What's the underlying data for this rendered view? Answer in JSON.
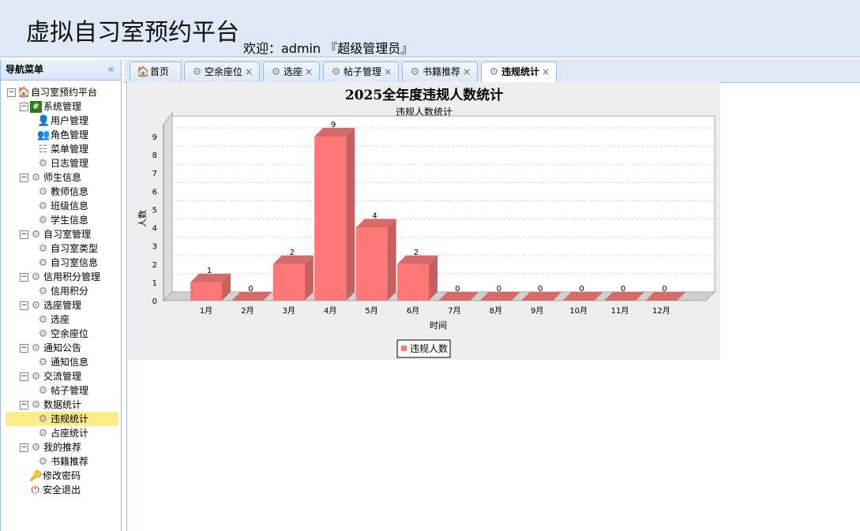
{
  "header": {
    "title": "虚拟自习室预约平台",
    "welcome": "欢迎：admin 『超级管理员』"
  },
  "sidebar": {
    "title": "导航菜单",
    "collapse_icon": "double-chevron-left-icon",
    "items": [
      {
        "label": "自习室预约平台",
        "level": 0,
        "icon": "home-icon",
        "expandable": true
      },
      {
        "label": "系统管理",
        "level": 1,
        "icon": "hash-icon",
        "expandable": true
      },
      {
        "label": "用户管理",
        "level": 2,
        "icon": "user-icon"
      },
      {
        "label": "角色管理",
        "level": 2,
        "icon": "users-icon"
      },
      {
        "label": "菜单管理",
        "level": 2,
        "icon": "menu-tree-icon"
      },
      {
        "label": "日志管理",
        "level": 2,
        "icon": "gear-icon"
      },
      {
        "label": "师生信息",
        "level": 1,
        "icon": "gear-icon",
        "expandable": true
      },
      {
        "label": "教师信息",
        "level": 2,
        "icon": "gear-icon"
      },
      {
        "label": "班级信息",
        "level": 2,
        "icon": "gear-icon"
      },
      {
        "label": "学生信息",
        "level": 2,
        "icon": "gear-icon"
      },
      {
        "label": "自习室管理",
        "level": 1,
        "icon": "gear-icon",
        "expandable": true
      },
      {
        "label": "自习室类型",
        "level": 2,
        "icon": "gear-icon"
      },
      {
        "label": "自习室信息",
        "level": 2,
        "icon": "gear-icon"
      },
      {
        "label": "信用积分管理",
        "level": 1,
        "icon": "gear-icon",
        "expandable": true
      },
      {
        "label": "信用积分",
        "level": 2,
        "icon": "gear-icon"
      },
      {
        "label": "选座管理",
        "level": 1,
        "icon": "gear-icon",
        "expandable": true
      },
      {
        "label": "选座",
        "level": 2,
        "icon": "gear-icon"
      },
      {
        "label": "空余座位",
        "level": 2,
        "icon": "gear-icon"
      },
      {
        "label": "通知公告",
        "level": 1,
        "icon": "gear-icon",
        "expandable": true
      },
      {
        "label": "通知信息",
        "level": 2,
        "icon": "gear-icon"
      },
      {
        "label": "交流管理",
        "level": 1,
        "icon": "gear-icon",
        "expandable": true
      },
      {
        "label": "帖子管理",
        "level": 2,
        "icon": "gear-icon"
      },
      {
        "label": "数据统计",
        "level": 1,
        "icon": "gear-icon",
        "expandable": true
      },
      {
        "label": "违规统计",
        "level": 2,
        "icon": "gear-icon",
        "selected": true
      },
      {
        "label": "占座统计",
        "level": 2,
        "icon": "gear-icon"
      },
      {
        "label": "我的推荐",
        "level": 1,
        "icon": "gear-icon",
        "expandable": true
      },
      {
        "label": "书籍推荐",
        "level": 2,
        "icon": "gear-icon"
      },
      {
        "label": "修改密码",
        "level": 1,
        "icon": "key-icon"
      },
      {
        "label": "安全退出",
        "level": 1,
        "icon": "exit-icon"
      }
    ]
  },
  "tabs": [
    {
      "label": "首页",
      "icon": "home-icon",
      "closable": false
    },
    {
      "label": "空余座位",
      "icon": "gear-icon",
      "closable": true
    },
    {
      "label": "选座",
      "icon": "gear-icon",
      "closable": true
    },
    {
      "label": "帖子管理",
      "icon": "gear-icon",
      "closable": true
    },
    {
      "label": "书籍推荐",
      "icon": "gear-icon",
      "closable": true
    },
    {
      "label": "违规统计",
      "icon": "gear-icon",
      "closable": true,
      "active": true
    }
  ],
  "close_glyph": "×",
  "chart_data": {
    "type": "bar",
    "style": "3d",
    "title": "2025全年度违规人数统计",
    "subtitle": "违规人数统计",
    "xlabel": "时间",
    "ylabel": "人数",
    "categories": [
      "1月",
      "2月",
      "3月",
      "4月",
      "5月",
      "6月",
      "7月",
      "8月",
      "9月",
      "10月",
      "11月",
      "12月"
    ],
    "series": [
      {
        "name": "违规人数",
        "values": [
          1,
          0,
          2,
          9,
          4,
          2,
          0,
          0,
          0,
          0,
          0,
          0
        ],
        "color": "#ff7777"
      }
    ],
    "ylim": [
      0,
      9
    ],
    "yticks": [
      0,
      1,
      2,
      3,
      4,
      5,
      6,
      7,
      8,
      9
    ],
    "grid": true,
    "legend": "bottom"
  }
}
